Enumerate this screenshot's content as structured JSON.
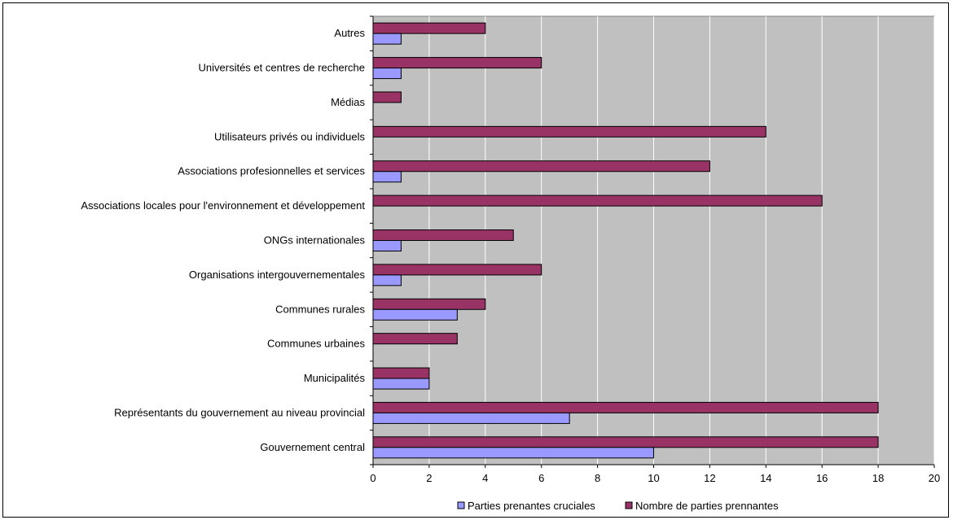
{
  "chart_data": {
    "type": "bar",
    "orientation": "horizontal",
    "categories": [
      "Autres",
      "Universités et centres de recherche",
      "Médias",
      "Utilisateurs privés ou individuels",
      "Associations profesionnelles et services",
      "Associations locales pour l'environnement et développement",
      "ONGs internationales",
      "Organisations intergouvernementales",
      "Communes rurales",
      "Communes urbaines",
      "Municipalités",
      "Représentants du gouvernement au niveau provincial",
      "Gouvernement central"
    ],
    "series": [
      {
        "name": "Parties prenantes cruciales",
        "color": "#9999ff",
        "values": [
          1,
          1,
          0,
          0,
          1,
          0,
          1,
          1,
          3,
          0,
          2,
          7,
          10
        ]
      },
      {
        "name": "Nombre de parties prennantes",
        "color": "#993366",
        "values": [
          4,
          6,
          1,
          14,
          12,
          16,
          5,
          6,
          4,
          3,
          2,
          18,
          18
        ]
      }
    ],
    "xlim": [
      0,
      20
    ],
    "xticks": [
      "0",
      "2",
      "4",
      "6",
      "8",
      "10",
      "12",
      "14",
      "16",
      "18",
      "20"
    ],
    "grid": true,
    "plot_background": "#c0c0c0",
    "legend_position": "bottom"
  }
}
